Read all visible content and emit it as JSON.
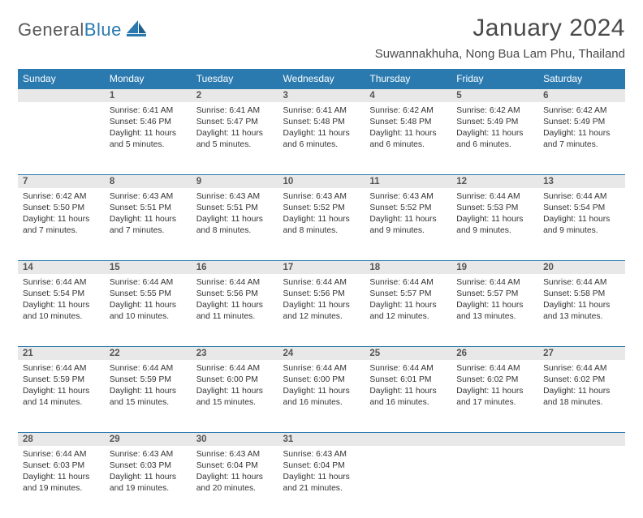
{
  "logo": {
    "word1": "General",
    "word2": "Blue"
  },
  "title": "January 2024",
  "location": "Suwannakhuha, Nong Bua Lam Phu, Thailand",
  "colors": {
    "header_bg": "#2a7ab0",
    "header_text": "#ffffff",
    "daynum_bg": "#e8e8e8",
    "daynum_border": "#2a7ab0",
    "body_text": "#333333",
    "title_text": "#4a4a4a",
    "logo_gray": "#5a5a5a",
    "logo_blue": "#2a7ab0",
    "page_bg": "#ffffff"
  },
  "fonts": {
    "title_size": 30,
    "location_size": 15,
    "header_size": 12,
    "body_size": 10.3,
    "daynum_size": 11.5
  },
  "layout": {
    "columns": 7,
    "rows": 5,
    "start_offset": 1,
    "days_in_month": 31
  },
  "weekdays": [
    "Sunday",
    "Monday",
    "Tuesday",
    "Wednesday",
    "Thursday",
    "Friday",
    "Saturday"
  ],
  "days": [
    {
      "n": 1,
      "sunrise": "6:41 AM",
      "sunset": "5:46 PM",
      "daylight": "11 hours and 5 minutes."
    },
    {
      "n": 2,
      "sunrise": "6:41 AM",
      "sunset": "5:47 PM",
      "daylight": "11 hours and 5 minutes."
    },
    {
      "n": 3,
      "sunrise": "6:41 AM",
      "sunset": "5:48 PM",
      "daylight": "11 hours and 6 minutes."
    },
    {
      "n": 4,
      "sunrise": "6:42 AM",
      "sunset": "5:48 PM",
      "daylight": "11 hours and 6 minutes."
    },
    {
      "n": 5,
      "sunrise": "6:42 AM",
      "sunset": "5:49 PM",
      "daylight": "11 hours and 6 minutes."
    },
    {
      "n": 6,
      "sunrise": "6:42 AM",
      "sunset": "5:49 PM",
      "daylight": "11 hours and 7 minutes."
    },
    {
      "n": 7,
      "sunrise": "6:42 AM",
      "sunset": "5:50 PM",
      "daylight": "11 hours and 7 minutes."
    },
    {
      "n": 8,
      "sunrise": "6:43 AM",
      "sunset": "5:51 PM",
      "daylight": "11 hours and 7 minutes."
    },
    {
      "n": 9,
      "sunrise": "6:43 AM",
      "sunset": "5:51 PM",
      "daylight": "11 hours and 8 minutes."
    },
    {
      "n": 10,
      "sunrise": "6:43 AM",
      "sunset": "5:52 PM",
      "daylight": "11 hours and 8 minutes."
    },
    {
      "n": 11,
      "sunrise": "6:43 AM",
      "sunset": "5:52 PM",
      "daylight": "11 hours and 9 minutes."
    },
    {
      "n": 12,
      "sunrise": "6:44 AM",
      "sunset": "5:53 PM",
      "daylight": "11 hours and 9 minutes."
    },
    {
      "n": 13,
      "sunrise": "6:44 AM",
      "sunset": "5:54 PM",
      "daylight": "11 hours and 9 minutes."
    },
    {
      "n": 14,
      "sunrise": "6:44 AM",
      "sunset": "5:54 PM",
      "daylight": "11 hours and 10 minutes."
    },
    {
      "n": 15,
      "sunrise": "6:44 AM",
      "sunset": "5:55 PM",
      "daylight": "11 hours and 10 minutes."
    },
    {
      "n": 16,
      "sunrise": "6:44 AM",
      "sunset": "5:56 PM",
      "daylight": "11 hours and 11 minutes."
    },
    {
      "n": 17,
      "sunrise": "6:44 AM",
      "sunset": "5:56 PM",
      "daylight": "11 hours and 12 minutes."
    },
    {
      "n": 18,
      "sunrise": "6:44 AM",
      "sunset": "5:57 PM",
      "daylight": "11 hours and 12 minutes."
    },
    {
      "n": 19,
      "sunrise": "6:44 AM",
      "sunset": "5:57 PM",
      "daylight": "11 hours and 13 minutes."
    },
    {
      "n": 20,
      "sunrise": "6:44 AM",
      "sunset": "5:58 PM",
      "daylight": "11 hours and 13 minutes."
    },
    {
      "n": 21,
      "sunrise": "6:44 AM",
      "sunset": "5:59 PM",
      "daylight": "11 hours and 14 minutes."
    },
    {
      "n": 22,
      "sunrise": "6:44 AM",
      "sunset": "5:59 PM",
      "daylight": "11 hours and 15 minutes."
    },
    {
      "n": 23,
      "sunrise": "6:44 AM",
      "sunset": "6:00 PM",
      "daylight": "11 hours and 15 minutes."
    },
    {
      "n": 24,
      "sunrise": "6:44 AM",
      "sunset": "6:00 PM",
      "daylight": "11 hours and 16 minutes."
    },
    {
      "n": 25,
      "sunrise": "6:44 AM",
      "sunset": "6:01 PM",
      "daylight": "11 hours and 16 minutes."
    },
    {
      "n": 26,
      "sunrise": "6:44 AM",
      "sunset": "6:02 PM",
      "daylight": "11 hours and 17 minutes."
    },
    {
      "n": 27,
      "sunrise": "6:44 AM",
      "sunset": "6:02 PM",
      "daylight": "11 hours and 18 minutes."
    },
    {
      "n": 28,
      "sunrise": "6:44 AM",
      "sunset": "6:03 PM",
      "daylight": "11 hours and 19 minutes."
    },
    {
      "n": 29,
      "sunrise": "6:43 AM",
      "sunset": "6:03 PM",
      "daylight": "11 hours and 19 minutes."
    },
    {
      "n": 30,
      "sunrise": "6:43 AM",
      "sunset": "6:04 PM",
      "daylight": "11 hours and 20 minutes."
    },
    {
      "n": 31,
      "sunrise": "6:43 AM",
      "sunset": "6:04 PM",
      "daylight": "11 hours and 21 minutes."
    }
  ],
  "labels": {
    "sunrise": "Sunrise:",
    "sunset": "Sunset:",
    "daylight": "Daylight:"
  }
}
